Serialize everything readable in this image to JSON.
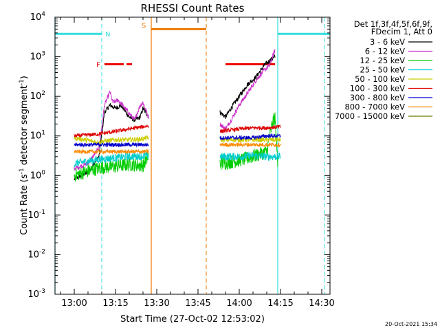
{
  "chart_data": {
    "type": "line",
    "title": "RHESSI Count Rates",
    "xlabel": "Start Time (27-Oct-02 12:53:02)",
    "ylabel_main": "Count Rate (s",
    "ylabel_exp1": "-1",
    "ylabel_mid": " detector segment",
    "ylabel_exp2": "-1",
    "ylabel_end": ")",
    "footer": "20-Oct-2021 15:34",
    "x_axis": {
      "type": "time",
      "range": [
        "12:53",
        "14:33"
      ],
      "tick_labels": [
        "13:00",
        "13:15",
        "13:30",
        "13:45",
        "14:00",
        "14:15",
        "14:30"
      ]
    },
    "y_axis": {
      "scale": "log",
      "range": [
        0.001,
        10000
      ],
      "tick_labels": [
        {
          "base": "10",
          "exp": "-3"
        },
        {
          "base": "10",
          "exp": "-2"
        },
        {
          "base": "10",
          "exp": "-1"
        },
        {
          "base": "10",
          "exp": "0"
        },
        {
          "base": "10",
          "exp": "1"
        },
        {
          "base": "10",
          "exp": "2"
        },
        {
          "base": "10",
          "exp": "3"
        },
        {
          "base": "10",
          "exp": "4"
        }
      ]
    },
    "legend": {
      "placement": "right",
      "header": [
        "Det 1f,3f,4f,5f,6f,9f,",
        "FDecim 1, Att 0"
      ]
    },
    "series": [
      {
        "name": "3 - 6 keV",
        "color": "#000000",
        "seg1": [
          [
            "13:00",
            0.8
          ],
          [
            "13:05",
            1.2
          ],
          [
            "13:09",
            3
          ],
          [
            "13:11",
            40
          ],
          [
            "13:13",
            60
          ],
          [
            "13:15",
            50
          ],
          [
            "13:17",
            60
          ],
          [
            "13:20",
            30
          ],
          [
            "13:22",
            25
          ],
          [
            "13:24",
            30
          ],
          [
            "13:25",
            50
          ],
          [
            "13:27",
            30
          ]
        ],
        "seg2": [
          [
            "13:53",
            40
          ],
          [
            "13:55",
            30
          ],
          [
            "13:57",
            50
          ],
          [
            "14:00",
            100
          ],
          [
            "14:03",
            200
          ],
          [
            "14:06",
            300
          ],
          [
            "14:09",
            600
          ],
          [
            "14:12",
            900
          ],
          [
            "14:13",
            1000
          ]
        ]
      },
      {
        "name": "6 - 12 keV",
        "color": "#cc33cc",
        "seg1": [
          [
            "13:00",
            1.5
          ],
          [
            "13:05",
            2
          ],
          [
            "13:09",
            5
          ],
          [
            "13:11",
            60
          ],
          [
            "13:13",
            130
          ],
          [
            "13:14",
            70
          ],
          [
            "13:16",
            80
          ],
          [
            "13:19",
            45
          ],
          [
            "13:22",
            25
          ],
          [
            "13:24",
            60
          ],
          [
            "13:25",
            70
          ],
          [
            "13:27",
            30
          ]
        ],
        "seg2": [
          [
            "13:53",
            20
          ],
          [
            "13:55",
            15
          ],
          [
            "13:57",
            25
          ],
          [
            "14:00",
            60
          ],
          [
            "14:03",
            120
          ],
          [
            "14:06",
            250
          ],
          [
            "14:09",
            450
          ],
          [
            "14:11",
            600
          ],
          [
            "14:13",
            1500
          ]
        ]
      },
      {
        "name": "12 - 25 keV",
        "color": "#00cc00",
        "seg1": [
          [
            "13:00",
            1.0
          ],
          [
            "13:05",
            1.3
          ],
          [
            "13:10",
            1.6
          ],
          [
            "13:15",
            1.7
          ],
          [
            "13:20",
            1.9
          ],
          [
            "13:25",
            1.8
          ],
          [
            "13:27",
            3.0
          ]
        ],
        "seg2": [
          [
            "13:53",
            2.0
          ],
          [
            "13:57",
            2.2
          ],
          [
            "14:00",
            2.4
          ],
          [
            "14:05",
            3.0
          ],
          [
            "14:10",
            4.0
          ],
          [
            "14:12",
            20
          ],
          [
            "14:13",
            30
          ],
          [
            "14:14",
            2.0
          ]
        ]
      },
      {
        "name": "25 - 50 keV",
        "color": "#00cccc",
        "seg1": [
          [
            "13:00",
            2.0
          ],
          [
            "13:05",
            2.3
          ],
          [
            "13:10",
            2.6
          ],
          [
            "13:15",
            2.8
          ],
          [
            "13:20",
            3.0
          ],
          [
            "13:25",
            3.1
          ],
          [
            "13:27",
            3.2
          ]
        ],
        "seg2": [
          [
            "13:53",
            3.0
          ],
          [
            "14:00",
            3.0
          ],
          [
            "14:05",
            3.2
          ],
          [
            "14:10",
            3.0
          ],
          [
            "14:15",
            3.0
          ]
        ]
      },
      {
        "name": "50 - 100 keV",
        "color": "#cccc00",
        "seg1": [
          [
            "13:00",
            9
          ],
          [
            "13:08",
            7
          ],
          [
            "13:15",
            8
          ],
          [
            "13:22",
            8
          ],
          [
            "13:27",
            9
          ]
        ],
        "seg2": [
          [
            "13:53",
            8
          ],
          [
            "14:00",
            8
          ],
          [
            "14:05",
            8
          ],
          [
            "14:10",
            8
          ],
          [
            "14:15",
            8
          ]
        ]
      },
      {
        "name": "100 - 300 keV",
        "color": "#dd0000",
        "seg1": [
          [
            "13:00",
            10
          ],
          [
            "13:08",
            11
          ],
          [
            "13:15",
            13
          ],
          [
            "13:20",
            15
          ],
          [
            "13:27",
            18
          ]
        ],
        "seg2": [
          [
            "13:53",
            13
          ],
          [
            "14:00",
            15
          ],
          [
            "14:05",
            16
          ],
          [
            "14:10",
            16
          ],
          [
            "14:15",
            17
          ]
        ]
      },
      {
        "name": "300 - 800 keV",
        "color": "#0000cc",
        "seg1": [
          [
            "13:00",
            6
          ],
          [
            "13:08",
            6
          ],
          [
            "13:15",
            6
          ],
          [
            "13:22",
            6
          ],
          [
            "13:27",
            6
          ]
        ],
        "seg2": [
          [
            "13:53",
            9
          ],
          [
            "14:00",
            9
          ],
          [
            "14:05",
            9
          ],
          [
            "14:10",
            10
          ],
          [
            "14:15",
            10
          ]
        ]
      },
      {
        "name": "800 - 7000 keV",
        "color": "#ff8800",
        "seg1": [
          [
            "13:00",
            4
          ],
          [
            "13:08",
            4
          ],
          [
            "13:15",
            4
          ],
          [
            "13:22",
            4
          ],
          [
            "13:27",
            4
          ]
        ],
        "seg2": [
          [
            "13:53",
            6
          ],
          [
            "14:00",
            6
          ],
          [
            "14:05",
            6
          ],
          [
            "14:10",
            6
          ],
          [
            "14:15",
            6
          ]
        ]
      },
      {
        "name": "7000 - 15000 keV",
        "color": "#667700",
        "seg1": [],
        "seg2": []
      }
    ],
    "annotations": {
      "cyan_N_bar": {
        "label": "N",
        "color": "#33dddd",
        "segments": [
          [
            "12:53",
            "13:10"
          ],
          [
            "14:14",
            "14:33"
          ]
        ],
        "y": 3800
      },
      "red_F_bar": {
        "label": "F",
        "color": "#ee0000",
        "segments": [
          [
            "13:11",
            "13:18"
          ],
          [
            "13:19",
            "13:21"
          ],
          [
            "13:55",
            "14:13"
          ]
        ],
        "y": 650
      },
      "orange_S_bar": {
        "label": "S",
        "color": "#ee7700",
        "segments": [
          [
            "13:28",
            "13:48"
          ]
        ],
        "y": 5000
      },
      "cyan_dashed_lines": [
        "13:10",
        "14:31"
      ],
      "cyan_solid_lines": [
        "12:53",
        "14:14"
      ],
      "orange_solid_lines": [
        "13:28"
      ],
      "orange_dashed_lines": [
        "13:48"
      ],
      "cyan_gap_marker": {
        "label": "N"
      },
      "orange_gap_marker": {
        "label": "S"
      }
    }
  }
}
